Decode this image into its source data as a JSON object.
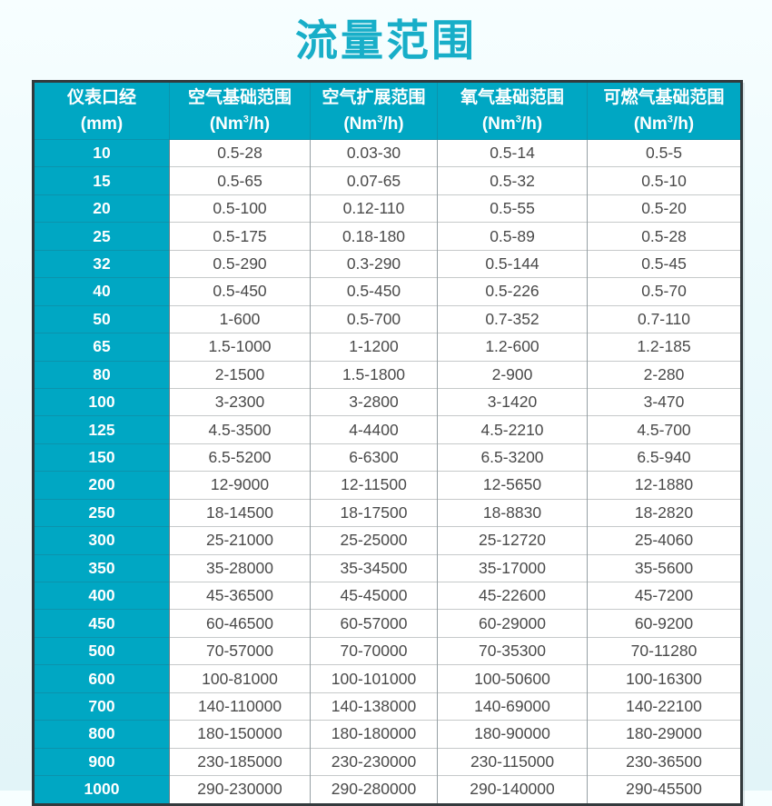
{
  "colors": {
    "accent_teal": "#00a7c3",
    "accent_teal_dark": "#0b93ac",
    "title_teal": "#18aec8",
    "page_background": "#e9f8fb",
    "table_border": "#333a3d",
    "cell_text": "#4a4a4a"
  },
  "chart_data": {
    "type": "table",
    "title": "流量范围",
    "columns": [
      {
        "title": "仪表口经",
        "unit": {
          "pre": "(mm)",
          "sup": "",
          "post": ""
        }
      },
      {
        "title": "空气基础范围",
        "unit": {
          "pre": "(Nm",
          "sup": "3",
          "post": "/h)"
        }
      },
      {
        "title": "空气扩展范围",
        "unit": {
          "pre": "(Nm",
          "sup": "3",
          "post": "/h)"
        }
      },
      {
        "title": "氧气基础范围",
        "unit": {
          "pre": "(Nm",
          "sup": "3",
          "post": "/h)"
        }
      },
      {
        "title": "可燃气基础范围",
        "unit": {
          "pre": "(Nm",
          "sup": "3",
          "post": "/h)"
        }
      }
    ],
    "rows": [
      [
        "10",
        "0.5-28",
        "0.03-30",
        "0.5-14",
        "0.5-5"
      ],
      [
        "15",
        "0.5-65",
        "0.07-65",
        "0.5-32",
        "0.5-10"
      ],
      [
        "20",
        "0.5-100",
        "0.12-110",
        "0.5-55",
        "0.5-20"
      ],
      [
        "25",
        "0.5-175",
        "0.18-180",
        "0.5-89",
        "0.5-28"
      ],
      [
        "32",
        "0.5-290",
        "0.3-290",
        "0.5-144",
        "0.5-45"
      ],
      [
        "40",
        "0.5-450",
        "0.5-450",
        "0.5-226",
        "0.5-70"
      ],
      [
        "50",
        "1-600",
        "0.5-700",
        "0.7-352",
        "0.7-110"
      ],
      [
        "65",
        "1.5-1000",
        "1-1200",
        "1.2-600",
        "1.2-185"
      ],
      [
        "80",
        "2-1500",
        "1.5-1800",
        "2-900",
        "2-280"
      ],
      [
        "100",
        "3-2300",
        "3-2800",
        "3-1420",
        "3-470"
      ],
      [
        "125",
        "4.5-3500",
        "4-4400",
        "4.5-2210",
        "4.5-700"
      ],
      [
        "150",
        "6.5-5200",
        "6-6300",
        "6.5-3200",
        "6.5-940"
      ],
      [
        "200",
        "12-9000",
        "12-11500",
        "12-5650",
        "12-1880"
      ],
      [
        "250",
        "18-14500",
        "18-17500",
        "18-8830",
        "18-2820"
      ],
      [
        "300",
        "25-21000",
        "25-25000",
        "25-12720",
        "25-4060"
      ],
      [
        "350",
        "35-28000",
        "35-34500",
        "35-17000",
        "35-5600"
      ],
      [
        "400",
        "45-36500",
        "45-45000",
        "45-22600",
        "45-7200"
      ],
      [
        "450",
        "60-46500",
        "60-57000",
        "60-29000",
        "60-9200"
      ],
      [
        "500",
        "70-57000",
        "70-70000",
        "70-35300",
        "70-11280"
      ],
      [
        "600",
        "100-81000",
        "100-101000",
        "100-50600",
        "100-16300"
      ],
      [
        "700",
        "140-110000",
        "140-138000",
        "140-69000",
        "140-22100"
      ],
      [
        "800",
        "180-150000",
        "180-180000",
        "180-90000",
        "180-29000"
      ],
      [
        "900",
        "230-185000",
        "230-230000",
        "230-115000",
        "230-36500"
      ],
      [
        "1000",
        "290-230000",
        "290-280000",
        "290-140000",
        "290-45500"
      ]
    ]
  }
}
